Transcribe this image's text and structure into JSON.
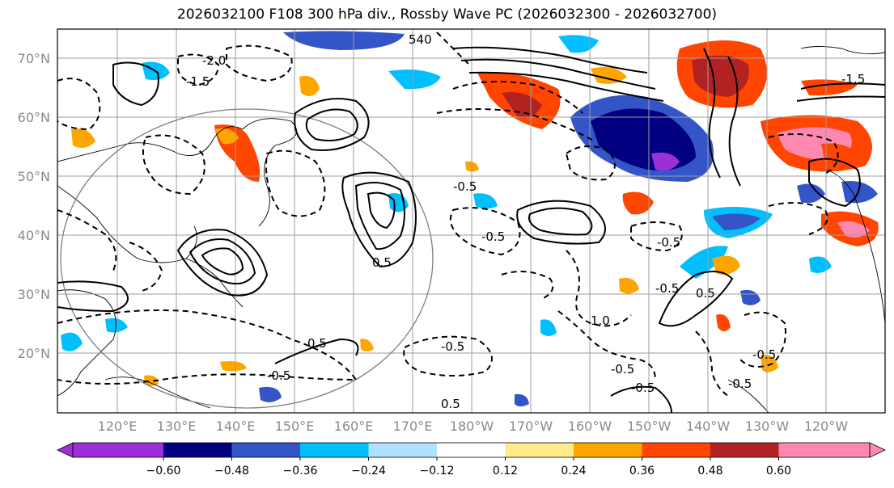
{
  "title": "2026032100 F108 300 hPa div., Rossby Wave PC (2026032300 - 2026032700)",
  "lat_labels": [
    "70°N",
    "60°N",
    "50°N",
    "40°N",
    "30°N",
    "20°N"
  ],
  "lon_labels": [
    "120°E",
    "130°E",
    "140°E",
    "150°E",
    "160°E",
    "170°E",
    "180°W",
    "170°W",
    "160°W",
    "150°W",
    "140°W",
    "130°W",
    "120°W"
  ],
  "contour_labels": [
    "-0.5",
    "-0.5",
    "-0.5",
    "-0.5",
    "-0.5",
    "-0.5",
    "-0.5",
    "-0.5",
    "0.5",
    "0.5",
    "-0.5",
    "0.5",
    "-1.5",
    "-2.0",
    "-1.5",
    "-0.5",
    "540",
    "0.5",
    "1.0"
  ],
  "colorbar": {
    "ticks": [
      "−0.60",
      "−0.48",
      "−0.36",
      "−0.24",
      "−0.12",
      "0.12",
      "0.24",
      "0.36",
      "0.48",
      "0.60"
    ],
    "colors": [
      "#9b30d9",
      "#000080",
      "#3455c8",
      "#00bfff",
      "#b0e2ff",
      "#ffffff",
      "#ffeb8a",
      "#ffa500",
      "#ff4500",
      "#b22222",
      "#ff88b0"
    ]
  }
}
